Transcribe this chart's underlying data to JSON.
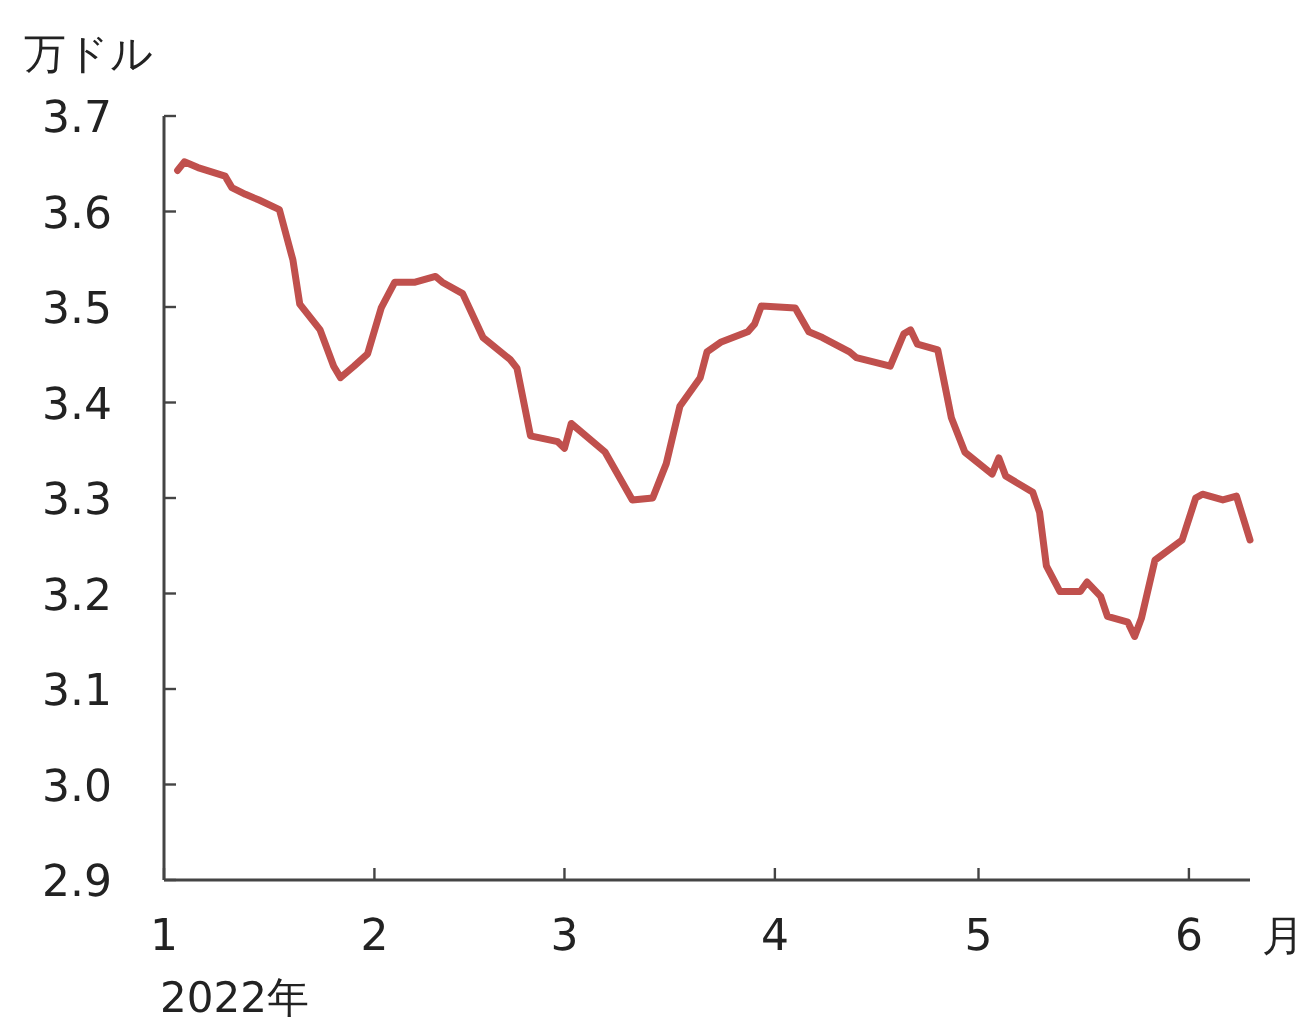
{
  "chart_data": {
    "type": "line",
    "ylabel": "万ドル",
    "xlabel": "月",
    "annotations": [
      "2022年"
    ],
    "x": [
      "2022-01-03",
      "2022-01-04",
      "2022-01-06",
      "2022-01-10",
      "2022-01-11",
      "2022-01-13",
      "2022-01-15",
      "2022-01-18",
      "2022-01-20",
      "2022-01-21",
      "2022-01-24",
      "2022-01-26",
      "2022-01-27",
      "2022-01-29",
      "2022-01-31",
      "2022-02-02",
      "2022-02-04",
      "2022-02-07",
      "2022-02-10",
      "2022-02-11",
      "2022-02-14",
      "2022-02-17",
      "2022-02-21",
      "2022-02-22",
      "2022-02-24",
      "2022-02-28",
      "2022-03-01",
      "2022-03-02",
      "2022-03-07",
      "2022-03-11",
      "2022-03-14",
      "2022-03-16",
      "2022-03-18",
      "2022-03-21",
      "2022-03-22",
      "2022-03-24",
      "2022-03-28",
      "2022-03-29",
      "2022-03-30",
      "2022-04-04",
      "2022-04-06",
      "2022-04-08",
      "2022-04-12",
      "2022-04-13",
      "2022-04-18",
      "2022-04-20",
      "2022-04-21",
      "2022-04-22",
      "2022-04-25",
      "2022-04-27",
      "2022-04-29",
      "2022-05-03",
      "2022-05-04",
      "2022-05-05",
      "2022-05-09",
      "2022-05-10",
      "2022-05-11",
      "2022-05-13",
      "2022-05-16",
      "2022-05-17",
      "2022-05-19",
      "2022-05-20",
      "2022-05-23",
      "2022-05-24",
      "2022-05-25",
      "2022-05-27",
      "2022-05-31",
      "2022-06-02",
      "2022-06-03",
      "2022-06-06",
      "2022-06-08",
      "2022-06-10"
    ],
    "series": [
      {
        "color": "#c0504d",
        "values": [
          3.643,
          3.652,
          3.646,
          3.637,
          3.625,
          3.618,
          3.612,
          3.602,
          3.549,
          3.503,
          3.476,
          3.438,
          3.426,
          3.438,
          3.451,
          3.499,
          3.526,
          3.526,
          3.532,
          3.526,
          3.514,
          3.468,
          3.445,
          3.436,
          3.365,
          3.359,
          3.352,
          3.378,
          3.348,
          3.298,
          3.3,
          3.336,
          3.396,
          3.426,
          3.453,
          3.463,
          3.474,
          3.482,
          3.501,
          3.499,
          3.474,
          3.468,
          3.453,
          3.447,
          3.438,
          3.472,
          3.476,
          3.461,
          3.455,
          3.384,
          3.348,
          3.325,
          3.342,
          3.323,
          3.306,
          3.285,
          3.229,
          3.202,
          3.202,
          3.212,
          3.197,
          3.176,
          3.17,
          3.155,
          3.174,
          3.235,
          3.256,
          3.3,
          3.304,
          3.298,
          3.302,
          3.256
        ]
      }
    ],
    "xlim": [
      "2022-01-01",
      "2022-06-10"
    ],
    "xticks": [
      {
        "value": "2022-01-01",
        "label": "1"
      },
      {
        "value": "2022-02-01",
        "label": "2"
      },
      {
        "value": "2022-03-01",
        "label": "3"
      },
      {
        "value": "2022-04-01",
        "label": "4"
      },
      {
        "value": "2022-05-01",
        "label": "5"
      },
      {
        "value": "2022-06-01",
        "label": "6"
      }
    ],
    "ylim": [
      2.9,
      3.7
    ],
    "yticks": [
      {
        "value": 2.9,
        "label": "2.9"
      },
      {
        "value": 3.0,
        "label": "3.0"
      },
      {
        "value": 3.1,
        "label": "3.1"
      },
      {
        "value": 3.2,
        "label": "3.2"
      },
      {
        "value": 3.3,
        "label": "3.3"
      },
      {
        "value": 3.4,
        "label": "3.4"
      },
      {
        "value": 3.5,
        "label": "3.5"
      },
      {
        "value": 3.6,
        "label": "3.6"
      },
      {
        "value": 3.7,
        "label": "3.7"
      }
    ],
    "grid": false,
    "marker": "none",
    "line_style": "solid"
  }
}
